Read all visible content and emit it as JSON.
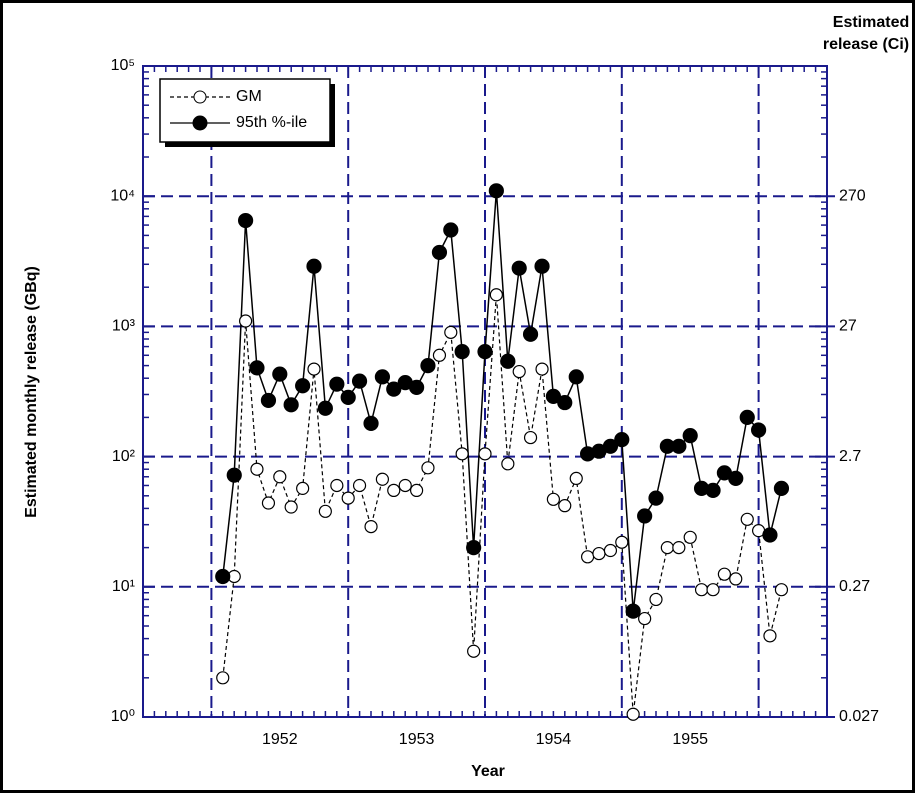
{
  "chart_data": {
    "type": "line",
    "xlabel": "Year",
    "ylabel": "Estimated monthly release (GBq)",
    "y2label": [
      "Estimated",
      "release (Ci)"
    ],
    "x": [
      1952.083,
      1952.167,
      1952.25,
      1952.333,
      1952.417,
      1952.5,
      1952.583,
      1952.667,
      1952.75,
      1952.833,
      1952.917,
      1953.0,
      1953.083,
      1953.167,
      1953.25,
      1953.333,
      1953.417,
      1953.5,
      1953.583,
      1953.667,
      1953.75,
      1953.833,
      1953.917,
      1954.0,
      1954.083,
      1954.167,
      1954.25,
      1954.333,
      1954.417,
      1954.5,
      1954.583,
      1954.667,
      1954.75,
      1954.833,
      1954.917,
      1955.0,
      1955.083,
      1955.167,
      1955.25,
      1955.333,
      1955.417,
      1955.5,
      1955.583,
      1955.667,
      1955.75,
      1955.833,
      1955.917,
      1956.0,
      1956.083,
      1956.167
    ],
    "series": [
      {
        "name": "GM",
        "color": "#000000",
        "dashed": true,
        "marker": "open",
        "values": [
          2.0,
          12,
          1100,
          80,
          44,
          70,
          41,
          57,
          470,
          38,
          60,
          48,
          60,
          29,
          67,
          55,
          60,
          55,
          82,
          600,
          900,
          105,
          3.2,
          105,
          1750,
          88,
          450,
          140,
          470,
          47,
          42,
          68,
          17,
          18,
          19,
          22,
          1.05,
          5.7,
          8,
          20,
          20,
          24,
          9.5,
          9.5,
          12.5,
          11.5,
          33,
          27,
          4.2,
          9.5
        ]
      },
      {
        "name": "95th %-ile",
        "color": "#000000",
        "dashed": false,
        "marker": "filled",
        "values": [
          12,
          72,
          6500,
          480,
          270,
          430,
          250,
          350,
          2900,
          235,
          360,
          285,
          380,
          180,
          410,
          330,
          370,
          340,
          500,
          3700,
          5500,
          640,
          20,
          640,
          11000,
          540,
          2800,
          870,
          2900,
          290,
          260,
          410,
          105,
          110,
          120,
          135,
          6.5,
          35,
          48,
          120,
          120,
          145,
          57,
          55,
          75,
          68,
          200,
          160,
          25,
          57
        ]
      }
    ],
    "xlim": [
      1951.5,
      1956.5
    ],
    "xticks": [
      {
        "value": 1952.5,
        "label": "1952"
      },
      {
        "value": 1953.5,
        "label": "1953"
      },
      {
        "value": 1954.5,
        "label": "1954"
      },
      {
        "value": 1955.5,
        "label": "1955"
      }
    ],
    "x_grid": [
      1952,
      1953,
      1954,
      1955,
      1956
    ],
    "ylim": [
      1,
      100000
    ],
    "ylog": true,
    "yticks": [
      {
        "value": 1,
        "label": "10⁰"
      },
      {
        "value": 10,
        "label": "10¹"
      },
      {
        "value": 100,
        "label": "10²"
      },
      {
        "value": 1000,
        "label": "10³"
      },
      {
        "value": 10000,
        "label": "10⁴"
      },
      {
        "value": 100000,
        "label": "10⁵"
      }
    ],
    "y2lim": [
      0.027,
      2700
    ],
    "y2ticks": [
      0.027,
      0.27,
      2.7,
      27,
      270
    ],
    "grid": true,
    "grid_color": "#1a1a8c",
    "legend": "upper left"
  }
}
